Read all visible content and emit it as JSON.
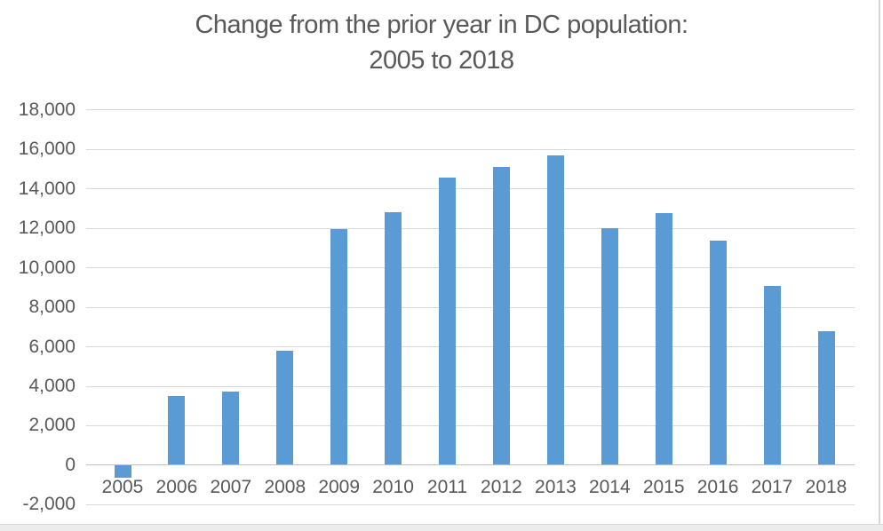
{
  "title": {
    "line1": "Change from the prior year in DC population:",
    "line2": "2005 to 2018"
  },
  "chart_data": {
    "type": "bar",
    "title": "Change from the prior year in DC population: 2005 to 2018",
    "categories": [
      "2005",
      "2006",
      "2007",
      "2008",
      "2009",
      "2010",
      "2011",
      "2012",
      "2013",
      "2014",
      "2015",
      "2016",
      "2017",
      "2018"
    ],
    "values": [
      -600,
      3500,
      3700,
      5800,
      11950,
      12800,
      14550,
      15100,
      15700,
      12000,
      12750,
      11350,
      9050,
      6750
    ],
    "xlabel": "",
    "ylabel": "",
    "ylim": [
      -2000,
      18000
    ],
    "ytick_step": 2000,
    "ytick_labels": [
      "-2,000",
      "0",
      "2,000",
      "4,000",
      "6,000",
      "8,000",
      "10,000",
      "12,000",
      "14,000",
      "16,000",
      "18,000"
    ],
    "grid": true,
    "legend": false,
    "colors": {
      "bar": "#5b9bd5",
      "gridline": "#d9d9d9",
      "zero_axis_line": "#bfbfbf",
      "text": "#595959"
    }
  }
}
